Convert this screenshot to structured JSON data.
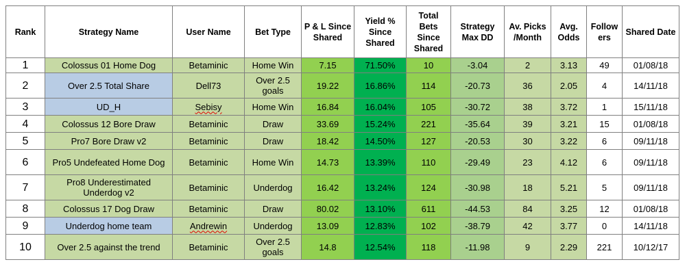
{
  "headers": [
    "Rank",
    "Strategy Name",
    "User Name",
    "Bet Type",
    "P & L Since Shared",
    "Yield % Since Shared",
    "Total Bets Since Shared",
    "Strategy Max DD",
    "Av. Picks /Month",
    "Avg. Odds",
    "Followers",
    "Shared Date"
  ],
  "rows": [
    {
      "rank": "1",
      "strategy": "Colossus 01 Home Dog",
      "user": "Betaminic",
      "bet_type": "Home Win",
      "pl": "7.15",
      "yield": "71.50%",
      "total_bets": "10",
      "max_dd": "-3.04",
      "picks": "2",
      "odds": "3.13",
      "followers": "49",
      "date": "01/08/18",
      "strategy_bg": "green",
      "user_spell": false
    },
    {
      "rank": "2",
      "strategy": "Over 2.5 Total Share",
      "user": "Dell73",
      "bet_type": "Over 2.5 goals",
      "pl": "19.22",
      "yield": "16.86%",
      "total_bets": "114",
      "max_dd": "-20.73",
      "picks": "36",
      "odds": "2.05",
      "followers": "4",
      "date": "14/11/18",
      "strategy_bg": "blue",
      "user_spell": false
    },
    {
      "rank": "3",
      "strategy": "UD_H",
      "user": "Sebisy",
      "bet_type": "Home Win",
      "pl": "16.84",
      "yield": "16.04%",
      "total_bets": "105",
      "max_dd": "-30.72",
      "picks": "38",
      "odds": "3.72",
      "followers": "1",
      "date": "15/11/18",
      "strategy_bg": "blue",
      "user_spell": true
    },
    {
      "rank": "4",
      "strategy": "Colossus 12 Bore Draw",
      "user": "Betaminic",
      "bet_type": "Draw",
      "pl": "33.69",
      "yield": "15.24%",
      "total_bets": "221",
      "max_dd": "-35.64",
      "picks": "39",
      "odds": "3.21",
      "followers": "15",
      "date": "01/08/18",
      "strategy_bg": "green",
      "user_spell": false
    },
    {
      "rank": "5",
      "strategy": "Pro7 Bore Draw v2",
      "user": "Betaminic",
      "bet_type": "Draw",
      "pl": "18.42",
      "yield": "14.50%",
      "total_bets": "127",
      "max_dd": "-20.53",
      "picks": "30",
      "odds": "3.22",
      "followers": "6",
      "date": "09/11/18",
      "strategy_bg": "green",
      "user_spell": false
    },
    {
      "rank": "6",
      "strategy": "Pro5 Undefeated Home Dog",
      "user": "Betaminic",
      "bet_type": "Home Win",
      "pl": "14.73",
      "yield": "13.39%",
      "total_bets": "110",
      "max_dd": "-29.49",
      "picks": "23",
      "odds": "4.12",
      "followers": "6",
      "date": "09/11/18",
      "strategy_bg": "green",
      "user_spell": false
    },
    {
      "rank": "7",
      "strategy": "Pro8 Underestimated Underdog v2",
      "user": "Betaminic",
      "bet_type": "Underdog",
      "pl": "16.42",
      "yield": "13.24%",
      "total_bets": "124",
      "max_dd": "-30.98",
      "picks": "18",
      "odds": "5.21",
      "followers": "5",
      "date": "09/11/18",
      "strategy_bg": "green",
      "user_spell": false
    },
    {
      "rank": "8",
      "strategy": "Colossus 17 Dog Draw",
      "user": "Betaminic",
      "bet_type": "Draw",
      "pl": "80.02",
      "yield": "13.10%",
      "total_bets": "611",
      "max_dd": "-44.53",
      "picks": "84",
      "odds": "3.25",
      "followers": "12",
      "date": "01/08/18",
      "strategy_bg": "green",
      "user_spell": false
    },
    {
      "rank": "9",
      "strategy": "Underdog home team",
      "user": "Andrewin",
      "bet_type": "Underdog",
      "pl": "13.09",
      "yield": "12.83%",
      "total_bets": "102",
      "max_dd": "-38.79",
      "picks": "42",
      "odds": "3.77",
      "followers": "0",
      "date": "14/11/18",
      "strategy_bg": "blue",
      "user_spell": true
    },
    {
      "rank": "10",
      "strategy": "Over 2.5 against the trend",
      "user": "Betaminic",
      "bet_type": "Over 2.5 goals",
      "pl": "14.8",
      "yield": "12.54%",
      "total_bets": "118",
      "max_dd": "-11.98",
      "picks": "9",
      "odds": "2.29",
      "followers": "221",
      "date": "10/12/17",
      "strategy_bg": "green",
      "user_spell": false
    }
  ]
}
